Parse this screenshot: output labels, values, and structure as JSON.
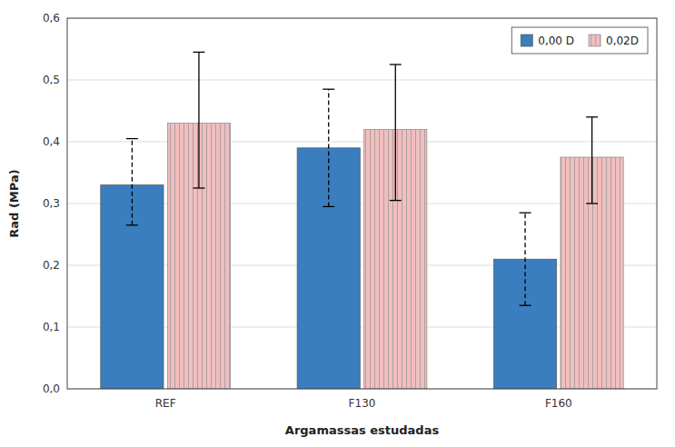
{
  "chart_data": {
    "type": "bar",
    "categories": [
      "REF",
      "F130",
      "F160"
    ],
    "series": [
      {
        "name": "0,00 D",
        "color": "#3A7EBF",
        "values": [
          0.33,
          0.39,
          0.21
        ],
        "error_lower": [
          0.065,
          0.095,
          0.075
        ],
        "error_upper": [
          0.075,
          0.095,
          0.075
        ]
      },
      {
        "name": "0,02D",
        "color": "#F2BEBE",
        "values": [
          0.43,
          0.42,
          0.375
        ],
        "error_lower": [
          0.105,
          0.115,
          0.075
        ],
        "error_upper": [
          0.115,
          0.105,
          0.065
        ]
      }
    ],
    "xlabel": "Argamassas estudadas",
    "ylabel": "Rad (MPa)",
    "ylim": [
      0,
      0.6
    ],
    "yticks": [
      {
        "value": 0.0,
        "label": "0,0"
      },
      {
        "value": 0.1,
        "label": "0,1"
      },
      {
        "value": 0.2,
        "label": "0,2"
      },
      {
        "value": 0.3,
        "label": "0,3"
      },
      {
        "value": 0.4,
        "label": "0,4"
      },
      {
        "value": 0.5,
        "label": "0,5"
      },
      {
        "value": 0.6,
        "label": "0,6"
      }
    ],
    "grid": true,
    "legend": "upper right"
  }
}
